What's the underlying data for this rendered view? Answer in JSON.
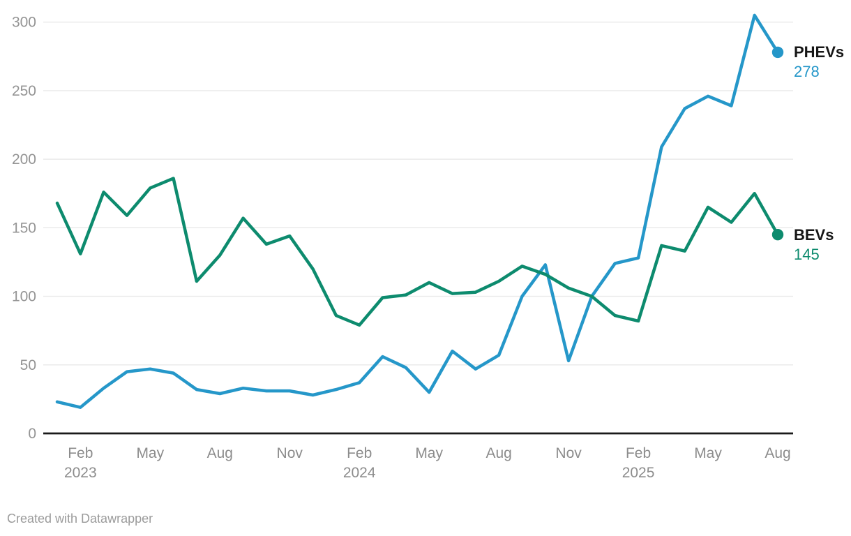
{
  "chart_data": {
    "type": "line",
    "title": "",
    "xlabel": "",
    "ylabel": "",
    "ylim": [
      0,
      300
    ],
    "yticks": [
      0,
      50,
      100,
      150,
      200,
      250,
      300
    ],
    "grid": true,
    "legend_position": "end-of-line",
    "x": [
      "Jan 2023",
      "Feb 2023",
      "Mar 2023",
      "Apr 2023",
      "May 2023",
      "Jun 2023",
      "Jul 2023",
      "Aug 2023",
      "Sep 2023",
      "Oct 2023",
      "Nov 2023",
      "Dec 2023",
      "Jan 2024",
      "Feb 2024",
      "Mar 2024",
      "Apr 2024",
      "May 2024",
      "Jun 2024",
      "Jul 2024",
      "Aug 2024",
      "Sep 2024",
      "Oct 2024",
      "Nov 2024",
      "Dec 2024",
      "Jan 2025",
      "Feb 2025",
      "Mar 2025",
      "Apr 2025",
      "May 2025",
      "Jun 2025",
      "Jul 2025",
      "Aug 2025"
    ],
    "xticks": [
      {
        "index": 1,
        "label": "Feb",
        "year": "2023"
      },
      {
        "index": 4,
        "label": "May",
        "year": ""
      },
      {
        "index": 7,
        "label": "Aug",
        "year": ""
      },
      {
        "index": 10,
        "label": "Nov",
        "year": ""
      },
      {
        "index": 13,
        "label": "Feb",
        "year": "2024"
      },
      {
        "index": 16,
        "label": "May",
        "year": ""
      },
      {
        "index": 19,
        "label": "Aug",
        "year": ""
      },
      {
        "index": 22,
        "label": "Nov",
        "year": ""
      },
      {
        "index": 25,
        "label": "Feb",
        "year": "2025"
      },
      {
        "index": 28,
        "label": "May",
        "year": ""
      },
      {
        "index": 31,
        "label": "Aug",
        "year": ""
      }
    ],
    "series": [
      {
        "name": "PHEVs",
        "color": "#2597c9",
        "end_value": 278,
        "values": [
          23,
          19,
          33,
          45,
          47,
          44,
          32,
          29,
          33,
          31,
          31,
          28,
          32,
          37,
          56,
          48,
          30,
          60,
          47,
          57,
          100,
          123,
          53,
          100,
          124,
          128,
          209,
          237,
          246,
          239,
          305,
          278
        ]
      },
      {
        "name": "BEVs",
        "color": "#0d8b6e",
        "end_value": 145,
        "values": [
          168,
          131,
          176,
          159,
          179,
          186,
          111,
          130,
          157,
          138,
          144,
          120,
          86,
          79,
          99,
          101,
          110,
          102,
          103,
          111,
          122,
          116,
          106,
          100,
          86,
          82,
          137,
          133,
          165,
          154,
          175,
          145
        ]
      }
    ],
    "axis_colors": {
      "gridline": "#e9e9e9",
      "baseline": "#1a1a1a",
      "y_tick_label": "#949494",
      "x_tick_label": "#8c8c8c"
    }
  },
  "footer": {
    "credit": "Created with Datawrapper"
  }
}
